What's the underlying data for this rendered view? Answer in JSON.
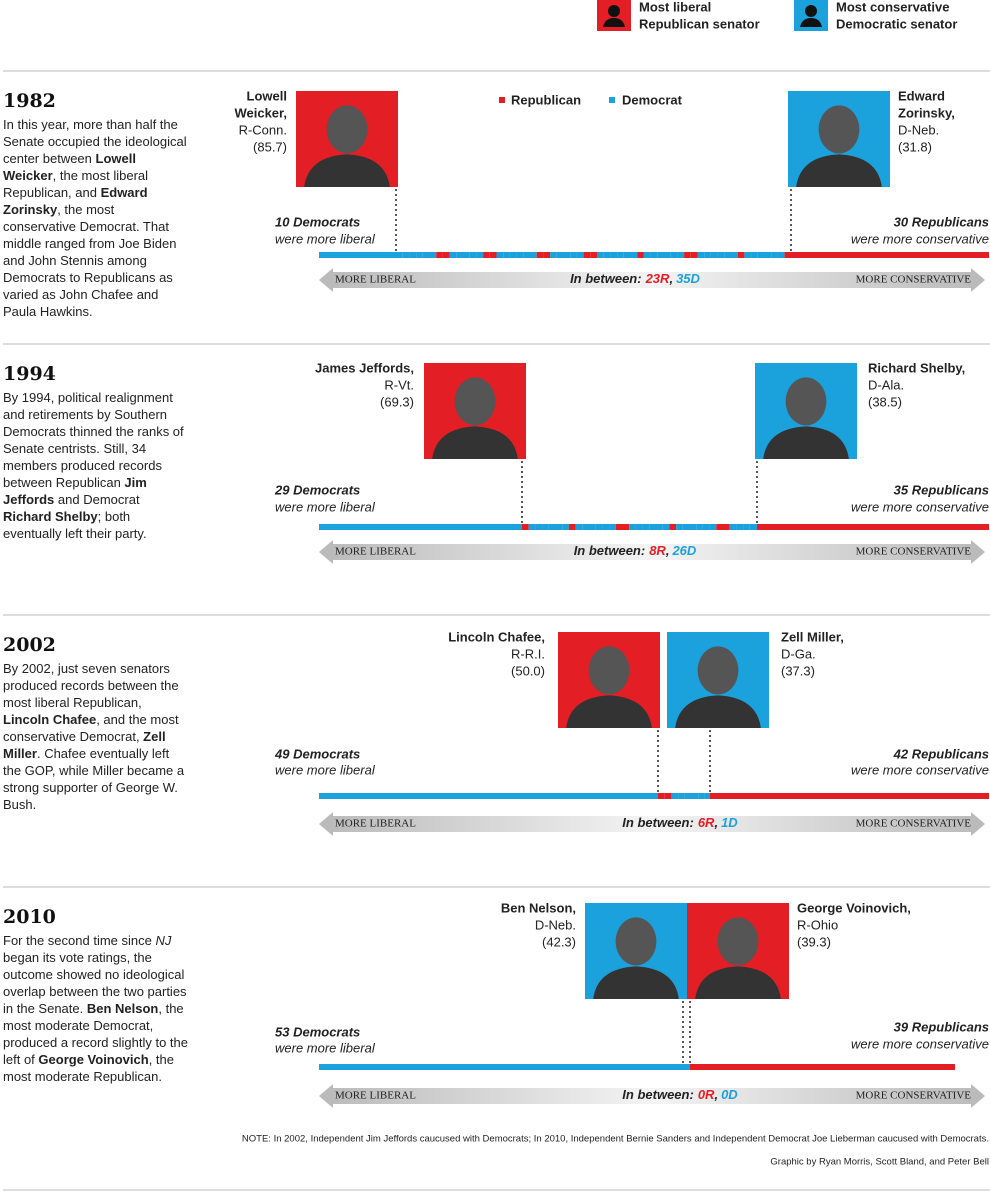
{
  "legend": {
    "icons": [
      {
        "line1": "Most liberal",
        "line2": "Republican senator",
        "color": "#e31e24"
      },
      {
        "line1": "Most conservative",
        "line2": "Democratic senator",
        "color": "#1ba1dc"
      }
    ],
    "parties": [
      {
        "name": "Republican",
        "color": "#e31e24"
      },
      {
        "name": "Democrat",
        "color": "#1ba1dc"
      }
    ]
  },
  "labels": {
    "more_liberal": "MORE LIBERAL",
    "more_conservative": "MORE CONSERVATIVE",
    "in_between": "In between:",
    "comma": ",",
    "were_more_liberal": "were more liberal",
    "were_more_conservative": "were more conservative"
  },
  "sections": [
    {
      "year": "1982",
      "description": [
        "In this year, more than half the Senate occupied the ideological center between ",
        {
          "text": "Lowell Weicker",
          "style": "bold"
        },
        ", the most liberal Republican, and ",
        {
          "text": "Edward Zorinsky",
          "style": "bold"
        },
        ", the most conservative Democrat.  That middle ranged from Joe Biden and John Stennis among Democrats to Republicans as varied as John Chafee and Paula Hawkins."
      ],
      "left_senator": {
        "name": [
          "Lowell",
          "Weicker,"
        ],
        "party_state": "R-Conn.",
        "score": "(85.7)",
        "color": "#e31e24"
      },
      "right_senator": {
        "name": [
          "Edward",
          "Zorinsky,"
        ],
        "party_state": "D-Neb.",
        "score": "(31.8)",
        "color": "#1ba1dc"
      },
      "left_count": "10 Democrats",
      "right_count": "30 Republicans",
      "between_r": "23R",
      "between_d": "35D"
    },
    {
      "year": "1994",
      "description": [
        "By 1994, political realignment and retirements by Southern Democrats thinned the ranks of Senate centrists. Still, 34 members produced records between Republican ",
        {
          "text": "Jim Jeffords",
          "style": "bold"
        },
        " and Democrat ",
        {
          "text": "Richard Shelby",
          "style": "bold"
        },
        "; both eventually left their party."
      ],
      "left_senator": {
        "name": [
          "James Jeffords,"
        ],
        "party_state": "R-Vt.",
        "score": "(69.3)",
        "color": "#e31e24"
      },
      "right_senator": {
        "name": [
          "Richard Shelby,"
        ],
        "party_state": "D-Ala.",
        "score": "(38.5)",
        "color": "#1ba1dc"
      },
      "left_count": "29 Democrats",
      "right_count": "35 Republicans",
      "between_r": "8R",
      "between_d": "26D"
    },
    {
      "year": "2002",
      "description": [
        "By 2002, just seven senators produced records between the most liberal Republican, ",
        {
          "text": "Lincoln Chafee",
          "style": "bold"
        },
        ", and the most conservative Democrat, ",
        {
          "text": "Zell Miller",
          "style": "bold"
        },
        ". Chafee eventually left the GOP, while Miller became a strong supporter of George W. Bush."
      ],
      "left_senator": {
        "name": [
          "Lincoln Chafee,"
        ],
        "party_state": "R-R.I.",
        "score": "(50.0)",
        "color": "#e31e24"
      },
      "right_senator": {
        "name": [
          "Zell Miller,"
        ],
        "party_state": "D-Ga.",
        "score": "(37.3)",
        "color": "#1ba1dc"
      },
      "left_count": "49 Democrats",
      "right_count": "42 Republicans",
      "between_r": "6R",
      "between_d": "1D"
    },
    {
      "year": "2010",
      "description": [
        "For the second time since ",
        {
          "text": "NJ",
          "style": "italic"
        },
        " began its vote ratings, the outcome showed no ideological overlap between the two parties in the Senate.  ",
        {
          "text": "Ben Nelson",
          "style": "bold"
        },
        ", the most moderate Democrat, produced a record slightly to the left of ",
        {
          "text": "George Voinovich",
          "style": "bold"
        },
        ", the most moderate Republican."
      ],
      "left_senator": {
        "name": [
          "Ben Nelson,"
        ],
        "party_state": "D-Neb.",
        "score": "(42.3)",
        "color": "#1ba1dc"
      },
      "right_senator": {
        "name": [
          "George Voinovich,"
        ],
        "party_state": "R-Ohio",
        "score": "(39.3)",
        "color": "#e31e24"
      },
      "left_count": "53 Democrats",
      "right_count": "39 Republicans",
      "between_r": "0R",
      "between_d": "0D"
    }
  ],
  "note": "NOTE: In 2002, Independent Jim Jeffords caucused with Democrats; In 2010, Independent Bernie Sanders and Independent Democrat Joe Lieberman caucused with Democrats.",
  "credit": "Graphic by Ryan Morris, Scott Bland, and Peter Bell"
}
